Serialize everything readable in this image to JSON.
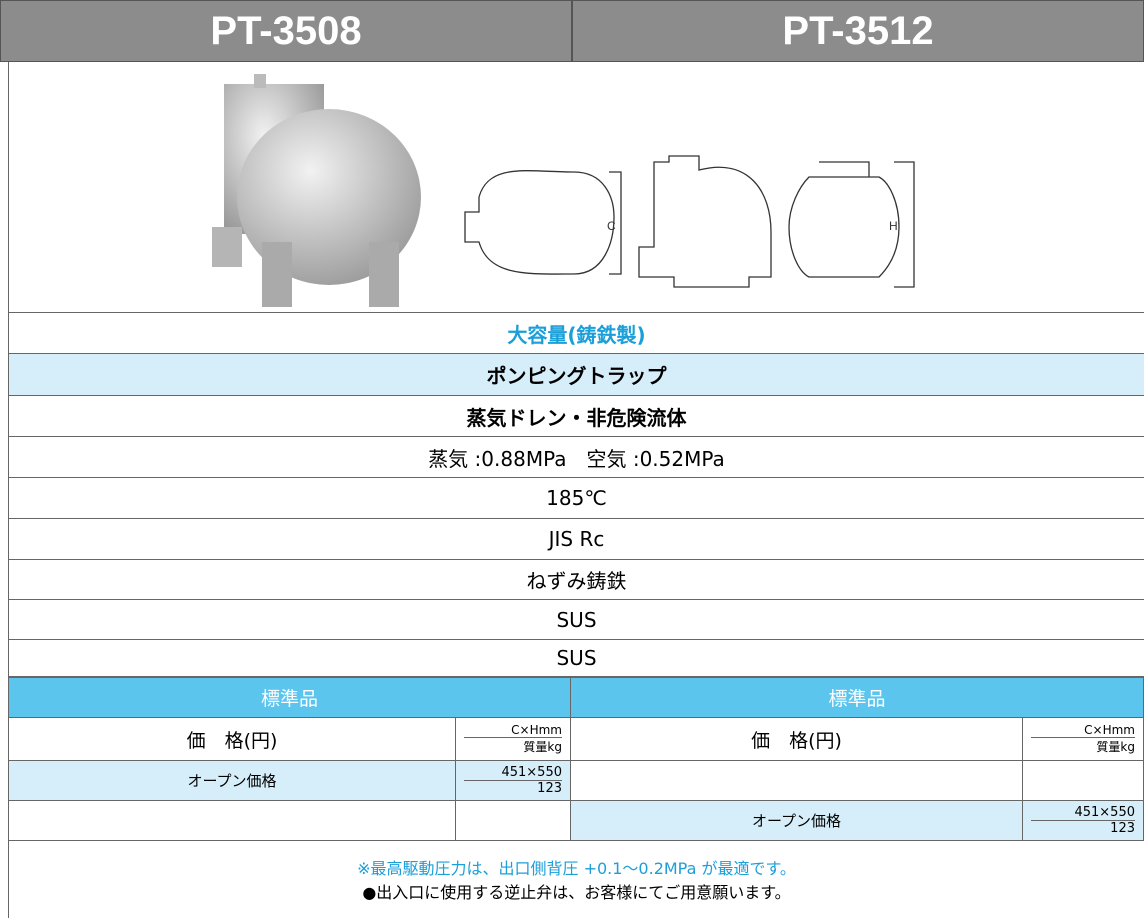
{
  "header": {
    "models": [
      "PT-3508",
      "PT-3512"
    ]
  },
  "drawing": {
    "dim_c": "C",
    "dim_h": "H"
  },
  "specs": [
    "大容量(鋳鉄製)",
    "ポンピングトラップ",
    "蒸気ドレン・非危険流体",
    "蒸気 :0.88MPa　空気 :0.52MPa",
    "185℃",
    "JIS Rc",
    "ねずみ鋳鉄",
    "SUS",
    "SUS"
  ],
  "table": {
    "standard": [
      "標準品",
      "標準品"
    ],
    "price_header": "価　格(円)",
    "dims_header": "C×Hmm",
    "mass_header": "質量kg",
    "left": {
      "price": "オープン価格",
      "dims": "451×550",
      "mass": "123"
    },
    "right": {
      "price": "オープン価格",
      "dims": "451×550",
      "mass": "123"
    }
  },
  "notes": [
    "※最高駆動圧力は、出口側背圧 +0.1～0.2MPa が最適です。",
    "●出入口に使用する逆止弁は、お客様にてご用意願います。"
  ]
}
